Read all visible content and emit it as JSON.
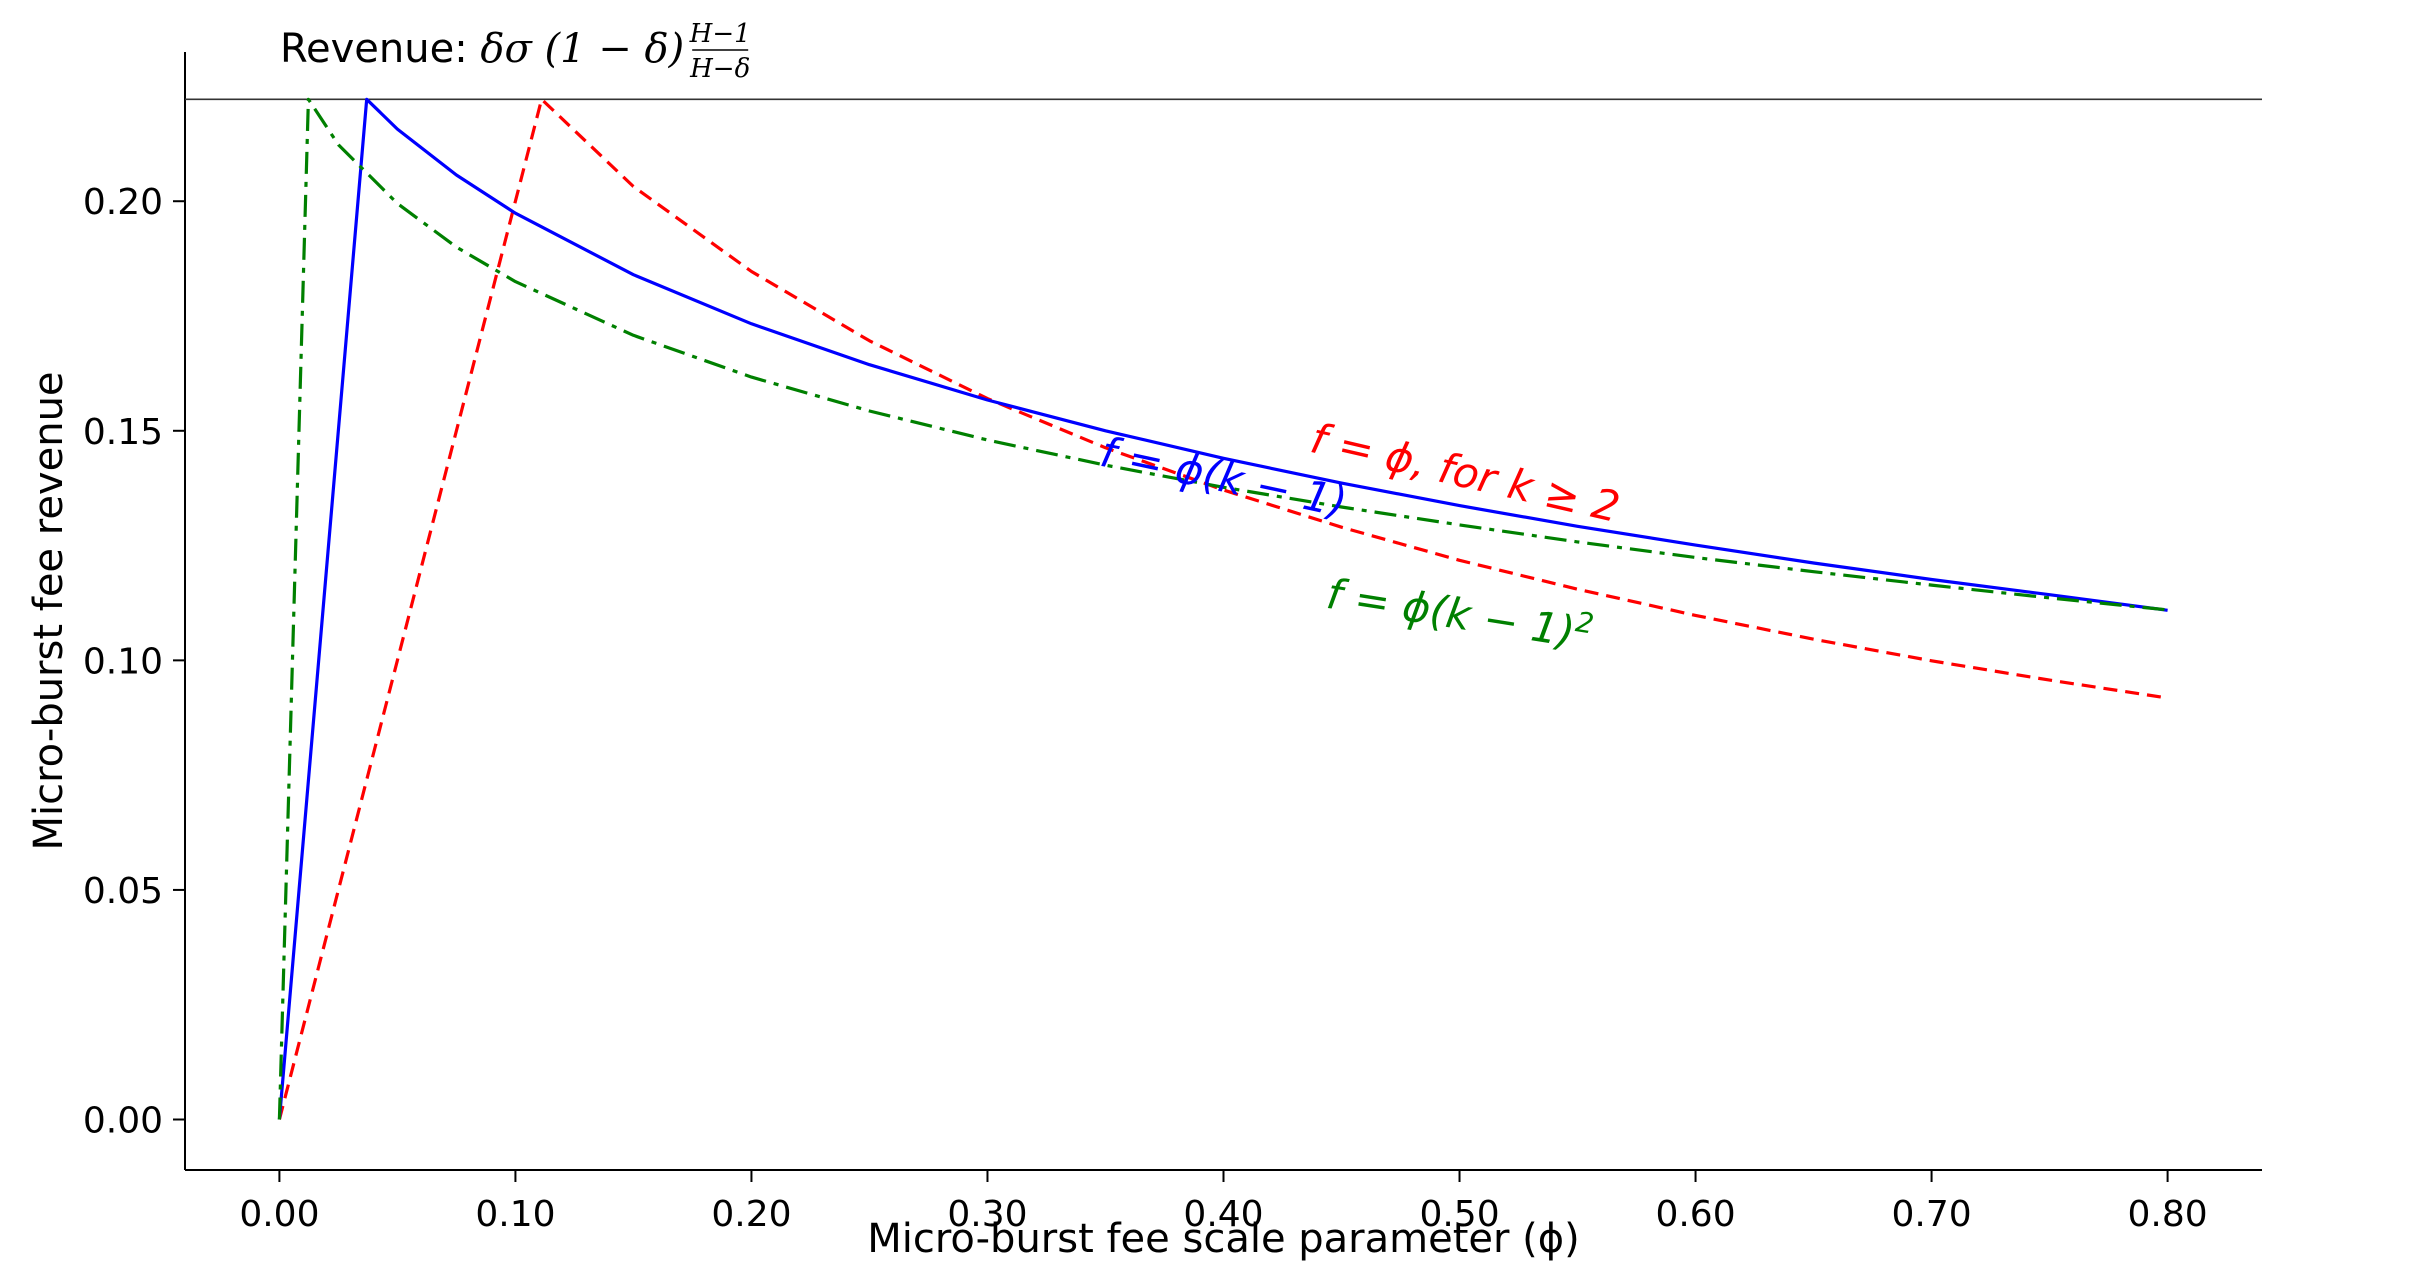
{
  "chart_data": {
    "type": "line",
    "xlabel": "Micro-burst fee scale parameter (ϕ)",
    "ylabel": "Micro-burst fee revenue",
    "xlim": [
      -0.04,
      0.84
    ],
    "ylim": [
      -0.011,
      0.2325
    ],
    "xticks": [
      "0.00",
      "0.10",
      "0.20",
      "0.30",
      "0.40",
      "0.50",
      "0.60",
      "0.70",
      "0.80"
    ],
    "yticks": [
      "0.00",
      "0.05",
      "0.10",
      "0.15",
      "0.20"
    ],
    "grid": false,
    "reference_line": {
      "y": 0.2222,
      "label_prefix": "Revenue: ",
      "label_formula": "δσ (1 − δ)",
      "label_frac_num": "H−1",
      "label_frac_den": "H−δ"
    },
    "series": [
      {
        "key": "red",
        "label": "f = ϕ, for k ≥ 2",
        "color": "#ff0000",
        "style": "dashed",
        "x": [
          0,
          0.1111,
          0.15,
          0.2,
          0.25,
          0.3,
          0.35,
          0.4,
          0.45,
          0.5,
          0.55,
          0.6,
          0.65,
          0.7,
          0.75,
          0.8
        ],
        "y": [
          0,
          0.2222,
          0.2032,
          0.1847,
          0.1696,
          0.157,
          0.1463,
          0.1371,
          0.129,
          0.1218,
          0.1155,
          0.1098,
          0.1046,
          0.0999,
          0.0957,
          0.0918
        ]
      },
      {
        "key": "blue",
        "label": "f = ϕ(k − 1)",
        "color": "#0000ff",
        "style": "solid",
        "x": [
          0,
          0.037,
          0.05,
          0.075,
          0.1,
          0.15,
          0.2,
          0.25,
          0.3,
          0.35,
          0.4,
          0.45,
          0.5,
          0.55,
          0.6,
          0.65,
          0.7,
          0.75,
          0.8
        ],
        "y": [
          0,
          0.2222,
          0.2157,
          0.2057,
          0.1974,
          0.184,
          0.1733,
          0.1644,
          0.1567,
          0.15,
          0.144,
          0.1386,
          0.1337,
          0.1292,
          0.1251,
          0.1212,
          0.1176,
          0.1143,
          0.1109
        ]
      },
      {
        "key": "green",
        "label": "f = ϕ(k − 1)",
        "label_sup": "2",
        "color": "#008000",
        "style": "dashdot",
        "x": [
          0,
          0.0123,
          0.025,
          0.05,
          0.075,
          0.1,
          0.15,
          0.2,
          0.25,
          0.3,
          0.35,
          0.4,
          0.45,
          0.5,
          0.55,
          0.6,
          0.65,
          0.7,
          0.75,
          0.8
        ],
        "y": [
          0,
          0.2222,
          0.2123,
          0.1995,
          0.19,
          0.1825,
          0.1708,
          0.1617,
          0.1543,
          0.148,
          0.1425,
          0.1377,
          0.1334,
          0.1295,
          0.1258,
          0.1224,
          0.1193,
          0.1164,
          0.1136,
          0.111
        ]
      }
    ]
  }
}
